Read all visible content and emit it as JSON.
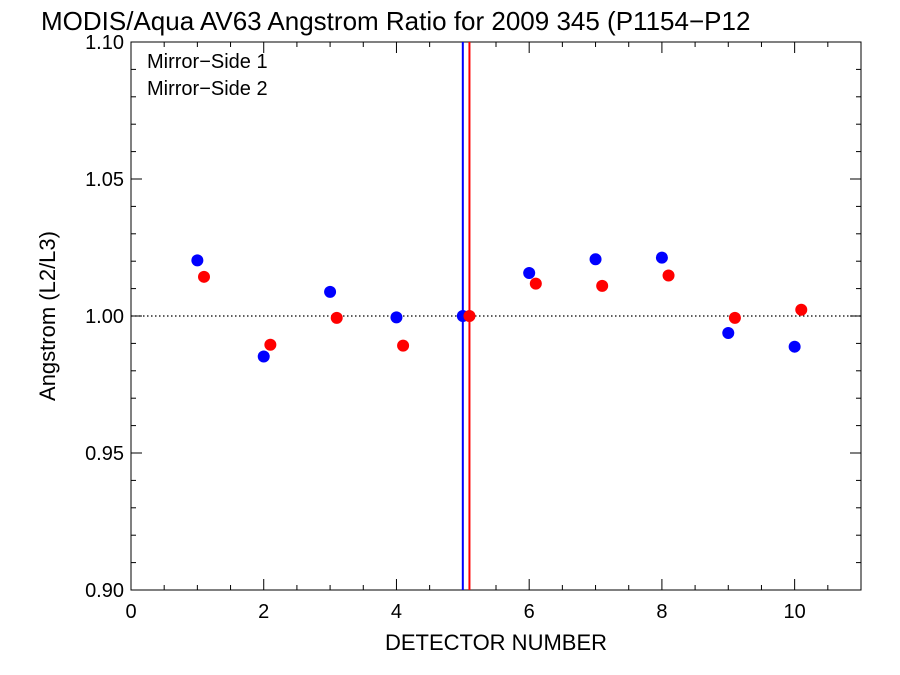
{
  "chart_data": {
    "type": "scatter",
    "title": "MODIS/Aqua AV63 Angstrom Ratio for 2009 345 (P1154−P12",
    "xlabel": "DETECTOR NUMBER",
    "ylabel": "Angstrom (L2/L3)",
    "xlim": [
      0,
      11
    ],
    "ylim": [
      0.9,
      1.1
    ],
    "x_ticks": [
      0,
      2,
      4,
      6,
      8,
      10
    ],
    "x_tick_labels": [
      "0",
      "2",
      "4",
      "6",
      "8",
      "10"
    ],
    "y_ticks": [
      0.9,
      0.95,
      1.0,
      1.05,
      1.1
    ],
    "y_tick_labels": [
      "0.90",
      "0.95",
      "1.00",
      "1.05",
      "1.10"
    ],
    "reference_line_y": 1.0,
    "vertical_lines": [
      {
        "x": 5.0,
        "color": "#0000ff"
      },
      {
        "x": 5.1,
        "color": "#ff0000"
      }
    ],
    "legend_position": "top-left",
    "series": [
      {
        "name": "Mirror−Side 1",
        "color": "#0000ff",
        "x": [
          1,
          2,
          3,
          4,
          5,
          6,
          7,
          8,
          9,
          10
        ],
        "y": [
          1.0203,
          0.9852,
          1.0088,
          0.9995,
          1.0,
          1.0157,
          1.0207,
          1.0213,
          0.9938,
          0.9888
        ]
      },
      {
        "name": "Mirror−Side 2",
        "color": "#ff0000",
        "x": [
          1.1,
          2.1,
          3.1,
          4.1,
          5.1,
          6.1,
          7.1,
          8.1,
          9.1,
          10.1
        ],
        "y": [
          1.0143,
          0.9895,
          0.9993,
          0.9892,
          1.0,
          1.0118,
          1.011,
          1.0148,
          0.9993,
          1.0023
        ]
      }
    ]
  }
}
